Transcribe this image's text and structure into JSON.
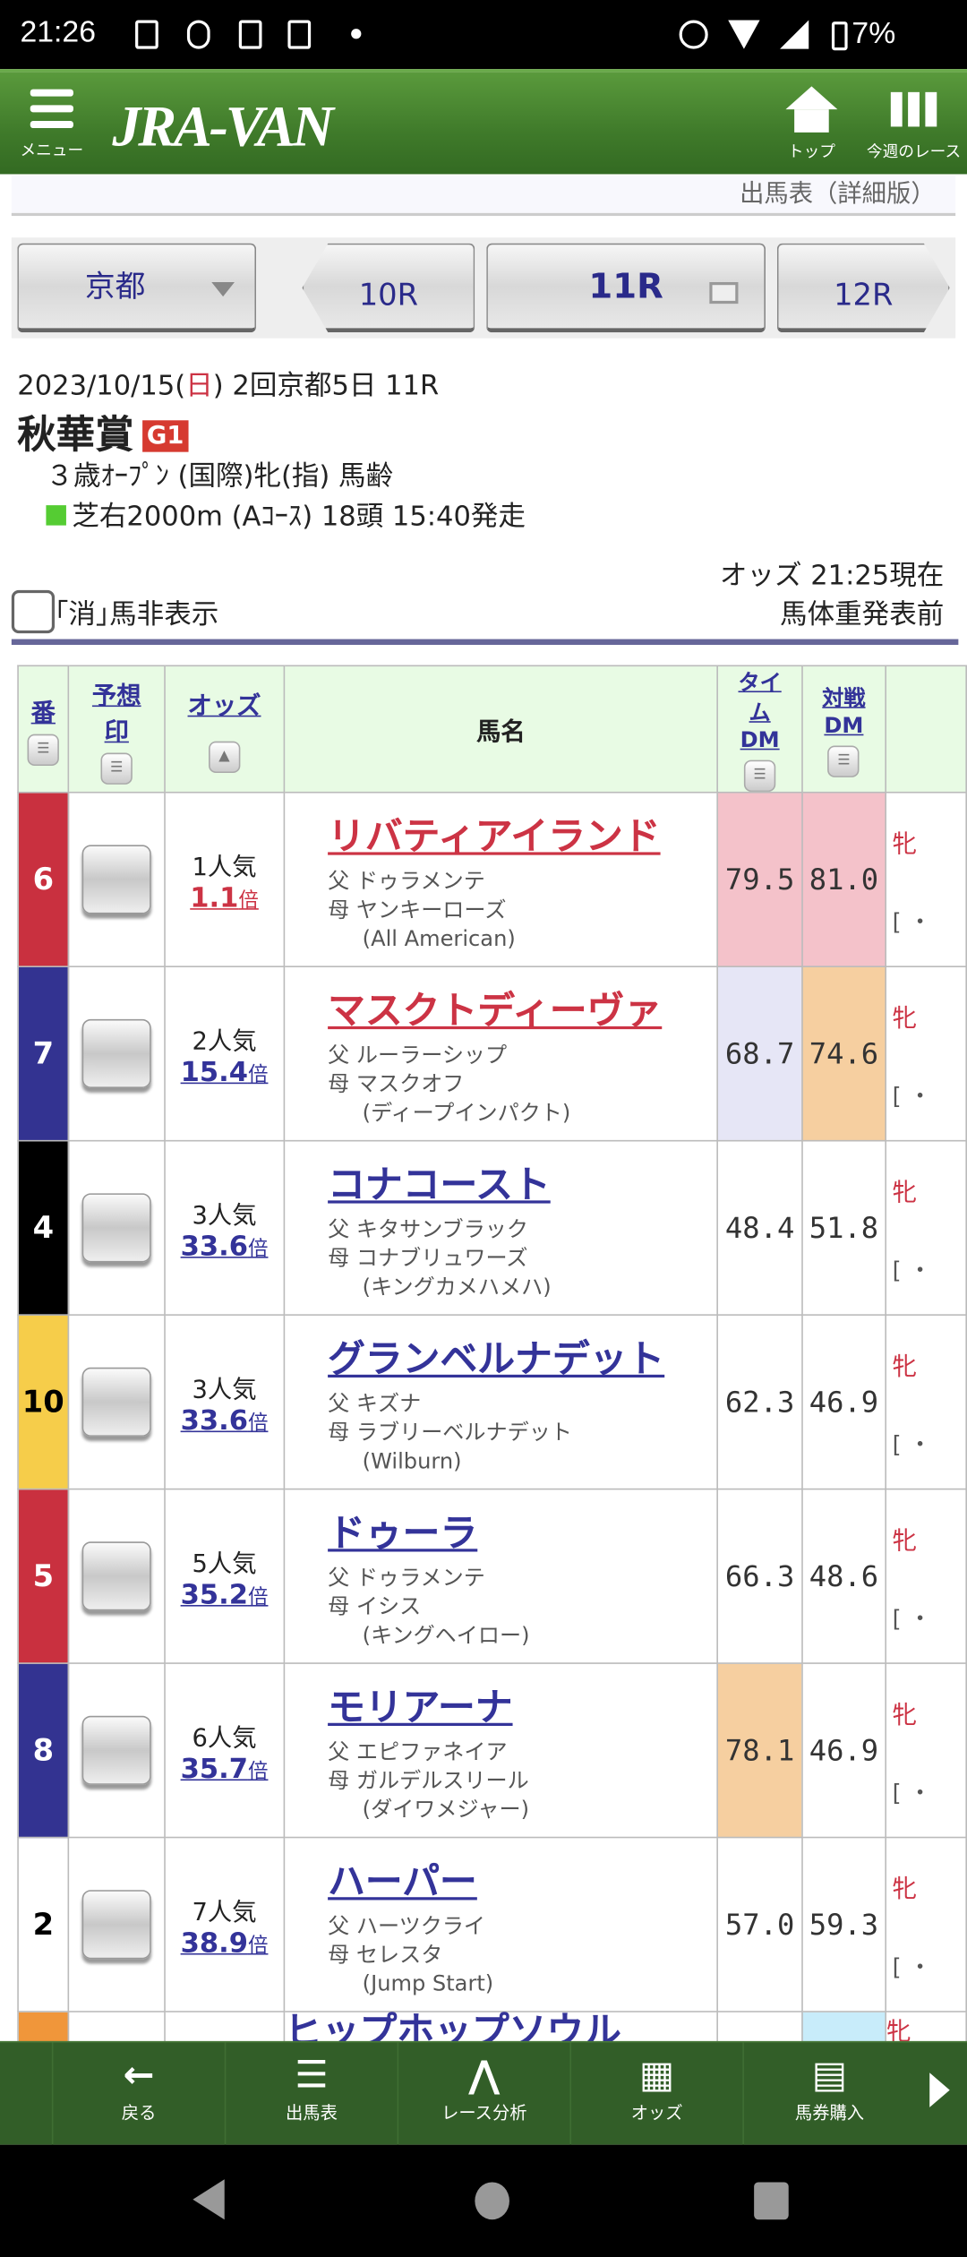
{
  "status": {
    "time": "21:26",
    "battery": "7%"
  },
  "header": {
    "menu_label": "メニュー",
    "logo": "JRA-VAN",
    "top_label": "トップ",
    "week_label": "今週のレース"
  },
  "page_subtitle": "出馬表（詳細版）",
  "race_nav": {
    "venue": "京都",
    "prev": "10R",
    "current": "11R",
    "next": "12R"
  },
  "race": {
    "date": "2023/10/15(",
    "weekday": "日",
    "date_rest": ") 2回京都5日 11R",
    "name": "秋華賞",
    "grade": "G1",
    "conditions": "３歳ｵｰﾌﾟﾝ (国際)牝(指) 馬齢",
    "course": "芝右2000m (Aｺｰｽ) 18頭 15:40発走",
    "course_color": "#55cc33"
  },
  "odds_time": "オッズ 21:25現在",
  "weight_status": "馬体重発表前",
  "hide_scratched_label": "｢消｣馬非表示",
  "table": {
    "headers": {
      "num": "番",
      "mark": "予想印",
      "odds": "オッズ",
      "name": "馬名",
      "time_dm": "タイムDM",
      "vs_dm": "対戦DM"
    },
    "rows": [
      {
        "num": "6",
        "waku_color": "#c9303f",
        "num_color": "#ffffff",
        "popularity": "1人気",
        "odds": "1.1",
        "odds_unit": "倍",
        "name": "リバティアイランド",
        "name_color": "#cc3344",
        "sire": "父 ドゥラメンテ",
        "dam": "母 ヤンキーローズ",
        "damsire": "(All American)",
        "time_dm": "79.5",
        "vs_dm": "81.0",
        "time_bg": "#f4c2ca",
        "vs_bg": "#f4c2ca",
        "sex": "牝"
      },
      {
        "num": "7",
        "waku_color": "#333391",
        "num_color": "#ffffff",
        "popularity": "2人気",
        "odds": "15.4",
        "odds_unit": "倍",
        "name": "マスクトディーヴァ",
        "name_color": "#cc3344",
        "sire": "父 ルーラーシップ",
        "dam": "母 マスクオフ",
        "damsire": "(ディープインパクト)",
        "time_dm": "68.7",
        "vs_dm": "74.6",
        "time_bg": "#e6e6f6",
        "vs_bg": "#f6cfa0",
        "sex": "牝"
      },
      {
        "num": "4",
        "waku_color": "#000000",
        "num_color": "#ffffff",
        "popularity": "3人気",
        "odds": "33.6",
        "odds_unit": "倍",
        "name": "コナコースト",
        "name_color": "#333399",
        "sire": "父 キタサンブラック",
        "dam": "母 コナブリュワーズ",
        "damsire": "(キングカメハメハ)",
        "time_dm": "48.4",
        "vs_dm": "51.8",
        "time_bg": "#ffffff",
        "vs_bg": "#ffffff",
        "sex": "牝"
      },
      {
        "num": "10",
        "waku_color": "#f6cd4a",
        "num_color": "#000000",
        "popularity": "3人気",
        "odds": "33.6",
        "odds_unit": "倍",
        "name": "グランベルナデット",
        "name_color": "#333399",
        "sire": "父 キズナ",
        "dam": "母 ラブリーベルナデット",
        "damsire": "(Wilburn)",
        "time_dm": "62.3",
        "vs_dm": "46.9",
        "time_bg": "#ffffff",
        "vs_bg": "#ffffff",
        "sex": "牝"
      },
      {
        "num": "5",
        "waku_color": "#c9303f",
        "num_color": "#ffffff",
        "popularity": "5人気",
        "odds": "35.2",
        "odds_unit": "倍",
        "name": "ドゥーラ",
        "name_color": "#333399",
        "sire": "父 ドゥラメンテ",
        "dam": "母 イシス",
        "damsire": "(キングヘイロー)",
        "time_dm": "66.3",
        "vs_dm": "48.6",
        "time_bg": "#ffffff",
        "vs_bg": "#ffffff",
        "sex": "牝"
      },
      {
        "num": "8",
        "waku_color": "#333391",
        "num_color": "#ffffff",
        "popularity": "6人気",
        "odds": "35.7",
        "odds_unit": "倍",
        "name": "モリアーナ",
        "name_color": "#333399",
        "sire": "父 エピファネイア",
        "dam": "母 ガルデルスリール",
        "damsire": "(ダイワメジャー)",
        "time_dm": "78.1",
        "vs_dm": "46.9",
        "time_bg": "#f6cfa0",
        "vs_bg": "#ffffff",
        "sex": "牝"
      },
      {
        "num": "2",
        "waku_color": "#ffffff",
        "num_color": "#000000",
        "popularity": "7人気",
        "odds": "38.9",
        "odds_unit": "倍",
        "name": "ハーパー",
        "name_color": "#333399",
        "sire": "父 ハーツクライ",
        "dam": "母 セレスタ",
        "damsire": "(Jump Start)",
        "time_dm": "57.0",
        "vs_dm": "59.3",
        "time_bg": "#ffffff",
        "vs_bg": "#ffffff",
        "sex": "牝"
      },
      {
        "num": "",
        "waku_color": "#f0963a",
        "num_color": "#ffffff",
        "popularity": "",
        "odds": "",
        "odds_unit": "",
        "name": "ヒップホップソウル",
        "name_color": "#333399",
        "sire": "",
        "dam": "",
        "damsire": "",
        "time_dm": "",
        "vs_dm": "",
        "time_bg": "#ffffff",
        "vs_bg": "#c8ecfa",
        "sex": "牝"
      }
    ]
  },
  "bottom_nav": [
    {
      "label": "戻る",
      "icon": "arrow-left-icon"
    },
    {
      "label": "出馬表",
      "icon": "list-icon"
    },
    {
      "label": "レース分析",
      "icon": "chart-icon"
    },
    {
      "label": "オッズ",
      "icon": "grid-icon"
    },
    {
      "label": "馬券購入",
      "icon": "ticket-icon"
    }
  ]
}
